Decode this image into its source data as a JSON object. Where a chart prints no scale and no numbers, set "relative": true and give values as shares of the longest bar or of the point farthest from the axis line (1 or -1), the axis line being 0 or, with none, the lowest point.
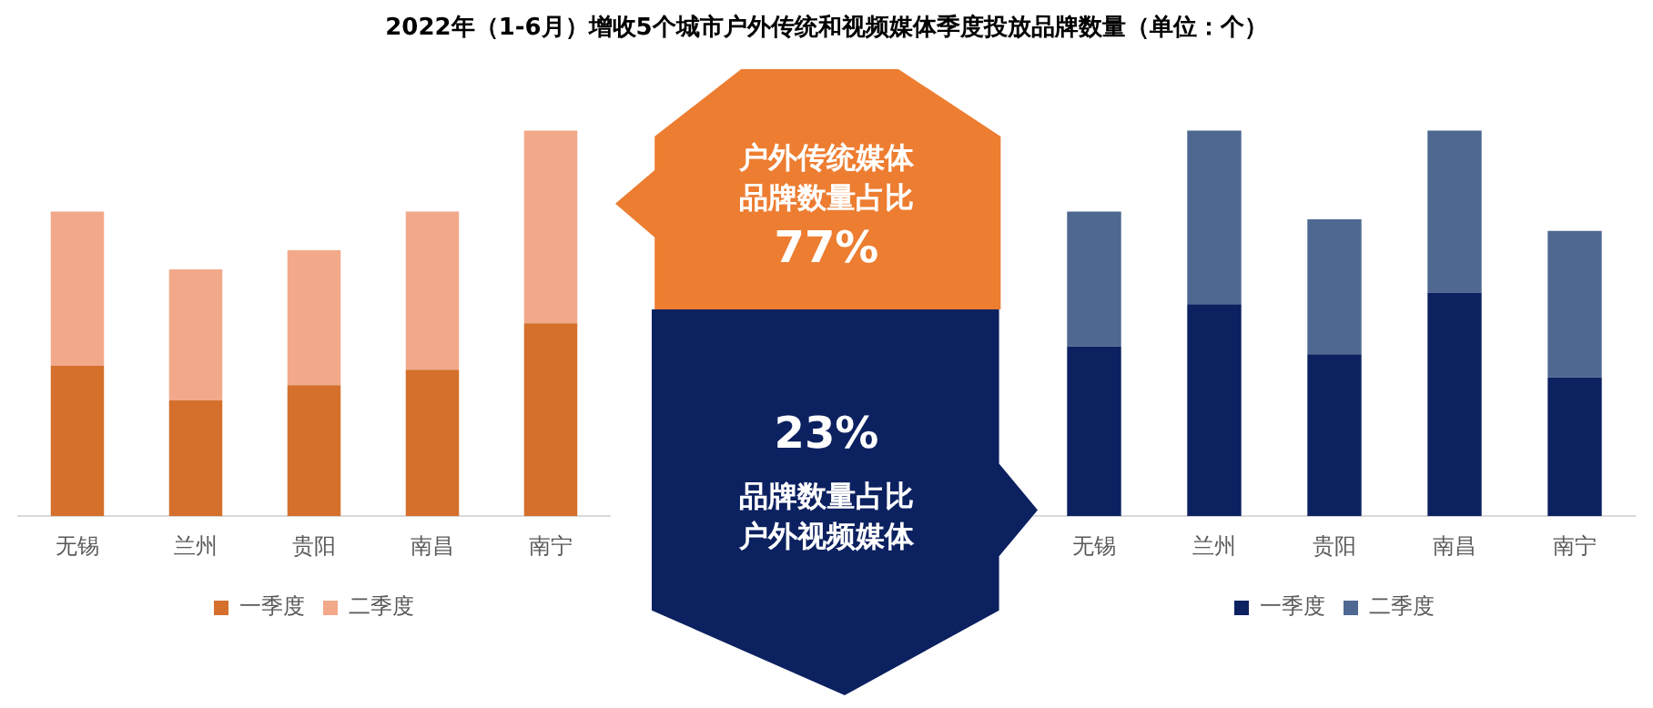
{
  "chart_data": [
    {
      "type": "bar",
      "title": "2022年（1-6月）增收5个城市户外传统和视频媒体季度投放品牌数量（单位：个）",
      "relative": true,
      "stacked": true,
      "categories": [
        "无锡",
        "兰州",
        "贵阳",
        "南昌",
        "南宁"
      ],
      "series": [
        {
          "name": "一季度",
          "color": "#d4702c",
          "values": [
            0.39,
            0.3,
            0.34,
            0.38,
            0.5
          ]
        },
        {
          "name": "二季度",
          "color": "#f2a98a",
          "values": [
            0.4,
            0.34,
            0.35,
            0.41,
            0.5
          ]
        }
      ],
      "legend": "bottom",
      "grid": false
    },
    {
      "type": "other",
      "annotations": [
        "户外传统媒体",
        "品牌数量占比",
        "77%",
        "23%",
        "品牌数量占比",
        "户外视频媒体"
      ]
    },
    {
      "type": "bar",
      "relative": true,
      "stacked": true,
      "categories": [
        "无锡",
        "兰州",
        "贵阳",
        "南昌",
        "南宁"
      ],
      "series": [
        {
          "name": "一季度",
          "color": "#0c2160",
          "values": [
            0.44,
            0.55,
            0.42,
            0.58,
            0.36
          ]
        },
        {
          "name": "二季度",
          "color": "#4e6891",
          "values": [
            0.35,
            0.45,
            0.35,
            0.42,
            0.38
          ]
        }
      ],
      "legend": "bottom",
      "grid": false
    }
  ]
}
